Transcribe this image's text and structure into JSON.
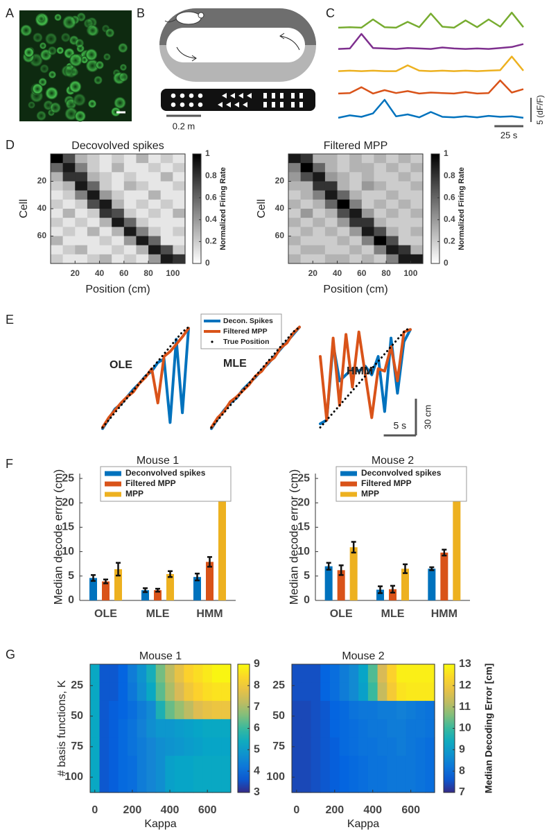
{
  "panels": [
    "A",
    "B",
    "C",
    "D",
    "E",
    "F",
    "G"
  ],
  "track": {
    "scale_label": "0.2 m"
  },
  "chart_data": [
    {
      "type": "line",
      "xlim": [
        0,
        160
      ],
      "x": [
        0,
        10,
        20,
        30,
        40,
        50,
        60,
        70,
        80,
        90,
        100,
        110,
        120,
        130,
        140,
        150,
        160
      ],
      "series": [
        {
          "color": "#77ac30",
          "values": [
            0.3,
            0.4,
            0.3,
            2.0,
            0.4,
            0.3,
            1.5,
            0.4,
            3.2,
            0.5,
            0.3,
            1.8,
            0.4,
            2.0,
            0.5,
            3.4,
            0.4
          ]
        },
        {
          "color": "#7e2f8e",
          "values": [
            0.2,
            0.3,
            3.3,
            0.4,
            0.3,
            0.2,
            0.4,
            0.3,
            0.2,
            0.5,
            0.3,
            0.2,
            0.3,
            0.2,
            0.4,
            0.6,
            1.2
          ]
        },
        {
          "color": "#edb120",
          "values": [
            0.2,
            0.3,
            0.2,
            0.3,
            0.2,
            0.2,
            1.4,
            0.3,
            0.2,
            0.3,
            0.2,
            0.3,
            0.2,
            0.3,
            0.4,
            3.2,
            0.3
          ]
        },
        {
          "color": "#d95319",
          "values": [
            0.3,
            0.4,
            1.6,
            0.3,
            1.0,
            0.4,
            0.8,
            0.3,
            0.5,
            0.4,
            0.3,
            0.6,
            0.3,
            0.4,
            3.0,
            0.5,
            1.2
          ]
        },
        {
          "color": "#0072bd",
          "values": [
            0.3,
            0.8,
            0.5,
            1.2,
            4.0,
            0.6,
            1.0,
            0.4,
            1.5,
            0.5,
            0.4,
            0.6,
            0.4,
            0.7,
            0.5,
            0.6,
            0.3
          ]
        }
      ],
      "scale_bars": [
        {
          "value": 5,
          "label": "5 (dF/F)",
          "axis": "y"
        },
        {
          "value": 25,
          "label": "25 s",
          "axis": "x"
        }
      ]
    },
    {
      "type": "heatmap",
      "title": "Decovolved spikes",
      "xlabel": "Position (cm)",
      "ylabel": "Cell",
      "xlim": [
        0,
        110
      ],
      "ylim": [
        80,
        0
      ],
      "xticks": [
        20,
        40,
        60,
        80,
        100
      ],
      "yticks": [
        20,
        40,
        60
      ],
      "colormap": "gray",
      "colorbar": {
        "label": "Normalized Firing Rate",
        "lim": [
          0,
          1
        ],
        "ticks": [
          0,
          0.2,
          0.4,
          0.6,
          0.8,
          1
        ]
      },
      "values": [
        [
          1,
          0.7,
          0.3,
          0.2,
          0.1,
          0.2,
          0.1,
          0.3,
          0.1,
          0.2,
          0.1
        ],
        [
          0.6,
          0.9,
          0.5,
          0.2,
          0.1,
          0.3,
          0.1,
          0.1,
          0.2,
          0.1,
          0.2
        ],
        [
          0.3,
          0.8,
          0.8,
          0.3,
          0.2,
          0.1,
          0.2,
          0.1,
          0.1,
          0.3,
          0.1
        ],
        [
          0.2,
          0.3,
          0.9,
          0.6,
          0.2,
          0.1,
          0.3,
          0.2,
          0.1,
          0.1,
          0.2
        ],
        [
          0.1,
          0.2,
          0.5,
          0.9,
          0.4,
          0.2,
          0.1,
          0.1,
          0.3,
          0.1,
          0.1
        ],
        [
          0.2,
          0.1,
          0.2,
          0.7,
          0.9,
          0.3,
          0.1,
          0.2,
          0.1,
          0.2,
          0.1
        ],
        [
          0.1,
          0.3,
          0.1,
          0.2,
          0.8,
          0.7,
          0.2,
          0.1,
          0.2,
          0.1,
          0.3
        ],
        [
          0.2,
          0.1,
          0.2,
          0.1,
          0.3,
          0.9,
          0.6,
          0.2,
          0.1,
          0.1,
          0.1
        ],
        [
          0.1,
          0.2,
          0.1,
          0.3,
          0.1,
          0.3,
          0.9,
          0.5,
          0.2,
          0.1,
          0.2
        ],
        [
          0.3,
          0.1,
          0.1,
          0.1,
          0.2,
          0.1,
          0.4,
          0.9,
          0.6,
          0.1,
          0.1
        ],
        [
          0.1,
          0.2,
          0.3,
          0.1,
          0.1,
          0.2,
          0.1,
          0.3,
          0.9,
          0.7,
          0.2
        ],
        [
          0.2,
          0.1,
          0.1,
          0.2,
          0.3,
          0.1,
          0.2,
          0.1,
          0.4,
          0.9,
          0.8
        ]
      ]
    },
    {
      "type": "heatmap",
      "title": "Filtered MPP",
      "xlabel": "Position (cm)",
      "ylabel": "Cell",
      "xlim": [
        0,
        110
      ],
      "ylim": [
        80,
        0
      ],
      "xticks": [
        20,
        40,
        60,
        80,
        100
      ],
      "yticks": [
        20,
        40,
        60
      ],
      "colormap": "gray",
      "colorbar": {
        "label": "Normalized Firing Rate",
        "lim": [
          0,
          1
        ],
        "ticks": [
          0,
          0.2,
          0.4,
          0.6,
          0.8,
          1
        ]
      },
      "values": [
        [
          0.9,
          0.8,
          0.3,
          0.3,
          0.2,
          0.3,
          0.2,
          0.3,
          0.2,
          0.3,
          0.2
        ],
        [
          0.5,
          1,
          0.6,
          0.3,
          0.2,
          0.3,
          0.3,
          0.2,
          0.3,
          0.2,
          0.3
        ],
        [
          0.4,
          0.7,
          0.9,
          0.4,
          0.3,
          0.2,
          0.3,
          0.2,
          0.2,
          0.3,
          0.2
        ],
        [
          0.3,
          0.3,
          0.8,
          0.8,
          0.3,
          0.2,
          0.4,
          0.3,
          0.2,
          0.2,
          0.3
        ],
        [
          0.2,
          0.3,
          0.5,
          0.9,
          0.6,
          0.3,
          0.2,
          0.2,
          0.3,
          0.2,
          0.2
        ],
        [
          0.3,
          0.2,
          0.3,
          0.6,
          1,
          0.5,
          0.2,
          0.3,
          0.2,
          0.3,
          0.2
        ],
        [
          0.2,
          0.4,
          0.2,
          0.3,
          0.7,
          0.9,
          0.4,
          0.2,
          0.3,
          0.2,
          0.3
        ],
        [
          0.3,
          0.2,
          0.3,
          0.2,
          0.4,
          0.8,
          0.8,
          0.3,
          0.2,
          0.2,
          0.2
        ],
        [
          0.2,
          0.3,
          0.2,
          0.3,
          0.2,
          0.4,
          0.9,
          0.7,
          0.3,
          0.2,
          0.3
        ],
        [
          0.3,
          0.2,
          0.2,
          0.2,
          0.3,
          0.2,
          0.5,
          1,
          0.7,
          0.2,
          0.2
        ],
        [
          0.2,
          0.3,
          0.3,
          0.2,
          0.2,
          0.3,
          0.2,
          0.5,
          0.9,
          0.8,
          0.3
        ],
        [
          0.3,
          0.2,
          0.2,
          0.3,
          0.3,
          0.2,
          0.3,
          0.2,
          0.5,
          0.9,
          0.9
        ]
      ]
    },
    {
      "type": "line",
      "label": "OLE",
      "xlim": [
        0,
        14
      ],
      "ylim": [
        0,
        85
      ],
      "x": [
        0,
        1,
        2,
        3,
        4,
        5,
        6,
        7,
        8,
        9,
        10,
        11,
        12,
        13,
        14
      ],
      "series": [
        {
          "name": "Decon. Spikes",
          "color": "#0072bd",
          "values": [
            1,
            9,
            17,
            21,
            27,
            33,
            38,
            44,
            48,
            55,
            58,
            6,
            74,
            14,
            83
          ]
        },
        {
          "name": "Filtered MPP",
          "color": "#d95319",
          "values": [
            2,
            10,
            16,
            22,
            27,
            31,
            38,
            43,
            50,
            22,
            60,
            64,
            70,
            76,
            83
          ]
        },
        {
          "name": "True Position",
          "color": "#000000",
          "style": "dotted",
          "values": [
            2,
            8,
            14,
            20,
            26,
            32,
            38,
            44,
            50,
            56,
            62,
            68,
            74,
            80,
            84
          ]
        }
      ]
    },
    {
      "type": "line",
      "label": "MLE",
      "xlim": [
        0,
        14
      ],
      "ylim": [
        0,
        85
      ],
      "x": [
        0,
        1,
        2,
        3,
        4,
        5,
        6,
        7,
        8,
        9,
        10,
        11,
        12,
        13,
        14
      ],
      "series": [
        {
          "color": "#0072bd",
          "values": [
            1,
            9,
            16,
            22,
            26,
            33,
            38,
            43,
            49,
            54,
            60,
            66,
            72,
            78,
            84
          ]
        },
        {
          "color": "#d95319",
          "values": [
            2,
            10,
            15,
            23,
            27,
            32,
            37,
            44,
            48,
            55,
            59,
            67,
            71,
            79,
            84
          ]
        },
        {
          "color": "#000000",
          "style": "dotted",
          "values": [
            2,
            8,
            14,
            20,
            26,
            32,
            38,
            44,
            50,
            56,
            62,
            68,
            74,
            80,
            84
          ]
        }
      ]
    },
    {
      "type": "line",
      "label": "HMM",
      "xlim": [
        0,
        14
      ],
      "ylim": [
        0,
        85
      ],
      "x": [
        0,
        1,
        2,
        3,
        4,
        5,
        6,
        7,
        8,
        9,
        10,
        11,
        12,
        13,
        14
      ],
      "series": [
        {
          "color": "#0072bd",
          "values": [
            5,
            8,
            70,
            40,
            45,
            50,
            48,
            52,
            45,
            60,
            15,
            75,
            30,
            72,
            82
          ]
        },
        {
          "color": "#d95319",
          "values": [
            60,
            8,
            75,
            20,
            78,
            35,
            80,
            45,
            10,
            50,
            48,
            68,
            40,
            80,
            82
          ]
        },
        {
          "color": "#000000",
          "style": "dotted",
          "values": [
            2,
            8,
            14,
            20,
            26,
            32,
            38,
            44,
            50,
            56,
            62,
            68,
            74,
            80,
            84
          ]
        }
      ],
      "scale_bars": [
        {
          "value": 5,
          "label": "5 s",
          "axis": "x"
        },
        {
          "value": 30,
          "label": "30 cm",
          "axis": "y"
        }
      ]
    },
    {
      "type": "bar",
      "title": "Mouse 1",
      "ylabel": "Median decode error (cm)",
      "categories": [
        "OLE",
        "MLE",
        "HMM"
      ],
      "ylim": [
        0,
        26
      ],
      "yticks": [
        0,
        5,
        10,
        15,
        20,
        25
      ],
      "legend": "upper left",
      "series": [
        {
          "name": "Deconvolved spikes",
          "color": "#0072bd",
          "values": [
            4.6,
            2.1,
            4.8
          ],
          "errors": [
            0.6,
            0.4,
            0.7
          ]
        },
        {
          "name": "Filtered MPP",
          "color": "#d95319",
          "values": [
            3.9,
            2.1,
            7.9
          ],
          "errors": [
            0.4,
            0.3,
            1.0
          ]
        },
        {
          "name": "MPP",
          "color": "#edb120",
          "values": [
            6.4,
            5.4,
            24
          ],
          "errors": [
            1.3,
            0.6,
            1.0
          ]
        }
      ]
    },
    {
      "type": "bar",
      "title": "Mouse 2",
      "ylabel": "Median decode error (cm)",
      "categories": [
        "OLE",
        "MLE",
        "HMM"
      ],
      "ylim": [
        0,
        26
      ],
      "yticks": [
        0,
        5,
        10,
        15,
        20,
        25
      ],
      "legend": "upper left",
      "series": [
        {
          "name": "Deconvolved spikes",
          "color": "#0072bd",
          "values": [
            7.0,
            2.2,
            6.5
          ],
          "errors": [
            0.7,
            0.7,
            0.3
          ]
        },
        {
          "name": "Filtered MPP",
          "color": "#d95319",
          "values": [
            6.2,
            2.3,
            9.8
          ],
          "errors": [
            1.0,
            0.7,
            0.6
          ]
        },
        {
          "name": "MPP",
          "color": "#edb120",
          "values": [
            10.9,
            6.5,
            23.3
          ],
          "errors": [
            1.1,
            0.9,
            1.1
          ]
        }
      ]
    },
    {
      "type": "heatmap",
      "title": "Mouse 1",
      "xlabel": "Kappa",
      "ylabel": "# basis functions, K",
      "xlim": [
        -25,
        725
      ],
      "ylim": [
        112.5,
        7.5
      ],
      "xticks": [
        0,
        200,
        400,
        600
      ],
      "yticks": [
        25,
        50,
        75,
        100
      ],
      "colormap": "parula",
      "colorbar": {
        "lim": [
          3,
          9
        ],
        "ticks": [
          3,
          4,
          5,
          6,
          7,
          8,
          9
        ]
      },
      "values": [
        [
          5.3,
          3.6,
          3.6,
          3.8,
          4.3,
          4.8,
          5.5,
          6.5,
          7.2,
          7.8,
          8.3,
          8.5,
          8.7,
          8.9,
          8.9
        ],
        [
          5.3,
          3.6,
          3.6,
          3.8,
          4.2,
          4.7,
          5.3,
          6.3,
          7.0,
          7.5,
          8.0,
          8.3,
          8.5,
          8.6,
          8.6
        ],
        [
          5.3,
          3.6,
          3.7,
          3.8,
          4.0,
          4.3,
          4.6,
          5.6,
          6.4,
          6.8,
          7.2,
          7.6,
          7.8,
          7.9,
          7.9
        ],
        [
          5.3,
          3.6,
          3.7,
          3.9,
          4.1,
          4.4,
          4.7,
          4.9,
          4.9,
          5.0,
          5.1,
          5.2,
          5.3,
          5.3,
          5.3
        ],
        [
          5.3,
          3.6,
          3.7,
          3.9,
          4.1,
          4.3,
          4.5,
          4.7,
          4.8,
          4.9,
          5.0,
          5.1,
          5.2,
          5.2,
          5.2
        ],
        [
          5.3,
          3.6,
          3.7,
          3.9,
          4.0,
          4.3,
          4.5,
          4.7,
          5.1,
          5.2,
          5.2,
          5.3,
          5.3,
          5.3,
          5.3
        ],
        [
          5.3,
          3.6,
          3.7,
          3.9,
          4.0,
          4.3,
          4.5,
          4.7,
          5.1,
          5.2,
          5.2,
          5.3,
          5.3,
          5.3,
          5.3
        ]
      ]
    },
    {
      "type": "heatmap",
      "title": "Mouse 2",
      "xlabel": "Kappa",
      "xlim": [
        -25,
        725
      ],
      "ylim": [
        112.5,
        7.5
      ],
      "xticks": [
        0,
        200,
        400,
        600
      ],
      "yticks": [
        25,
        50,
        75,
        100
      ],
      "colormap": "parula",
      "colorbar": {
        "label": "Median Decoding Error [cm]",
        "lim": [
          7,
          13
        ],
        "ticks": [
          7,
          8,
          9,
          10,
          11,
          12,
          13
        ]
      },
      "values": [
        [
          7.5,
          7.5,
          7.5,
          7.8,
          8.0,
          8.3,
          8.6,
          9.2,
          10.2,
          11.5,
          12.3,
          12.8,
          12.8,
          12.8,
          12.8
        ],
        [
          7.5,
          7.5,
          7.5,
          7.8,
          8.0,
          8.3,
          8.6,
          9.1,
          10.0,
          11.3,
          12.1,
          12.6,
          12.7,
          12.7,
          12.7
        ],
        [
          7.4,
          7.4,
          7.5,
          7.6,
          7.8,
          7.9,
          8.1,
          8.2,
          8.2,
          8.3,
          8.3,
          8.4,
          8.3,
          8.2,
          8.1
        ],
        [
          7.4,
          7.4,
          7.5,
          7.6,
          7.8,
          7.9,
          8.0,
          8.1,
          8.2,
          8.2,
          8.3,
          8.3,
          8.2,
          8.2,
          8.1
        ],
        [
          7.4,
          7.4,
          7.5,
          7.6,
          7.7,
          7.9,
          8.0,
          8.1,
          8.1,
          8.2,
          8.2,
          8.3,
          8.2,
          8.1,
          8.0
        ],
        [
          7.4,
          7.4,
          7.5,
          7.6,
          7.7,
          7.8,
          7.9,
          8.0,
          8.1,
          8.1,
          8.2,
          8.2,
          8.2,
          8.1,
          8.0
        ],
        [
          7.4,
          7.4,
          7.5,
          7.6,
          7.7,
          7.8,
          7.9,
          8.0,
          8.1,
          8.1,
          8.2,
          8.2,
          8.2,
          8.1,
          8.0
        ]
      ]
    }
  ]
}
